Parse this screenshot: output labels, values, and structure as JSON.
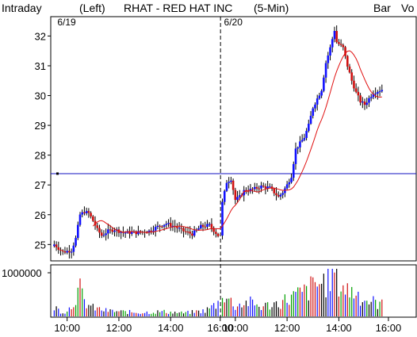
{
  "header": {
    "mode": "Intraday",
    "scale": "(Left)",
    "symbol": "RHAT - RED HAT INC",
    "interval": "(5-Min)",
    "style_label": "Bar",
    "volume_label": "Vo",
    "volume_label_color": "#00b000"
  },
  "colors": {
    "up_body": "#1010ff",
    "down_body": "#d01010",
    "wick": "#000000",
    "ma_line": "#e01010",
    "hline": "#1010c0",
    "panel_border": "#000000"
  },
  "chart_data": {
    "type": "candlestick",
    "title": "RHAT - RED HAT INC",
    "days": [
      {
        "label": "6/19",
        "start_slot": 0
      },
      {
        "label": "6/20",
        "start_slot": 78
      }
    ],
    "x_ticks": [
      {
        "label": "10:00",
        "slot": 6
      },
      {
        "label": "12:00",
        "slot": 30
      },
      {
        "label": "14:00",
        "slot": 54
      },
      {
        "label": "16:00",
        "slot": 77
      },
      {
        "label": "10:00",
        "slot": 84
      },
      {
        "label": "12:00",
        "slot": 108
      },
      {
        "label": "14:00",
        "slot": 132
      },
      {
        "label": "16:00",
        "slot": 155
      }
    ],
    "slots_total": 162,
    "y_ticks": [
      25,
      26,
      27,
      28,
      29,
      30,
      31,
      32
    ],
    "ylim": [
      24.45,
      32.65
    ],
    "horizontal_line": 27.38,
    "volume_axis_label": "1000000",
    "volume_ylim": [
      0,
      1000000
    ],
    "price_keyframes": [
      [
        0,
        25.0
      ],
      [
        4,
        24.75
      ],
      [
        8,
        24.8
      ],
      [
        10,
        25.2
      ],
      [
        12,
        26.0
      ],
      [
        14,
        26.1
      ],
      [
        16,
        26.05
      ],
      [
        18,
        25.8
      ],
      [
        20,
        25.5
      ],
      [
        22,
        25.3
      ],
      [
        25,
        25.45
      ],
      [
        28,
        25.5
      ],
      [
        32,
        25.4
      ],
      [
        38,
        25.4
      ],
      [
        44,
        25.45
      ],
      [
        48,
        25.6
      ],
      [
        52,
        25.7
      ],
      [
        56,
        25.6
      ],
      [
        60,
        25.45
      ],
      [
        64,
        25.35
      ],
      [
        68,
        25.6
      ],
      [
        72,
        25.65
      ],
      [
        76,
        25.3
      ],
      [
        78,
        26.4
      ],
      [
        80,
        27.1
      ],
      [
        82,
        27.2
      ],
      [
        84,
        26.5
      ],
      [
        86,
        26.6
      ],
      [
        88,
        26.8
      ],
      [
        92,
        26.85
      ],
      [
        96,
        26.95
      ],
      [
        100,
        26.9
      ],
      [
        104,
        26.6
      ],
      [
        106,
        26.75
      ],
      [
        108,
        27.0
      ],
      [
        110,
        27.3
      ],
      [
        112,
        28.2
      ],
      [
        116,
        28.6
      ],
      [
        118,
        29.0
      ],
      [
        120,
        29.6
      ],
      [
        124,
        30.2
      ],
      [
        126,
        31.1
      ],
      [
        128,
        31.6
      ],
      [
        130,
        32.2
      ],
      [
        131,
        31.8
      ],
      [
        134,
        31.6
      ],
      [
        136,
        31.0
      ],
      [
        138,
        30.5
      ],
      [
        140,
        30.1
      ],
      [
        142,
        29.8
      ],
      [
        144,
        29.7
      ],
      [
        146,
        29.9
      ],
      [
        148,
        30.1
      ],
      [
        150,
        30.15
      ],
      [
        152,
        30.2
      ]
    ],
    "volume_keyframes": [
      [
        0,
        0.2
      ],
      [
        4,
        0.08
      ],
      [
        8,
        0.2
      ],
      [
        10,
        0.45
      ],
      [
        12,
        0.55
      ],
      [
        14,
        0.3
      ],
      [
        18,
        0.18
      ],
      [
        24,
        0.12
      ],
      [
        30,
        0.1
      ],
      [
        40,
        0.08
      ],
      [
        50,
        0.1
      ],
      [
        60,
        0.07
      ],
      [
        70,
        0.12
      ],
      [
        76,
        0.28
      ],
      [
        78,
        0.55
      ],
      [
        80,
        0.4
      ],
      [
        84,
        0.22
      ],
      [
        90,
        0.3
      ],
      [
        96,
        0.2
      ],
      [
        104,
        0.28
      ],
      [
        110,
        0.4
      ],
      [
        116,
        0.5
      ],
      [
        120,
        0.62
      ],
      [
        126,
        0.75
      ],
      [
        130,
        0.95
      ],
      [
        132,
        0.7
      ],
      [
        136,
        0.55
      ],
      [
        140,
        0.5
      ],
      [
        144,
        0.35
      ],
      [
        148,
        0.3
      ],
      [
        152,
        0.25
      ]
    ]
  }
}
